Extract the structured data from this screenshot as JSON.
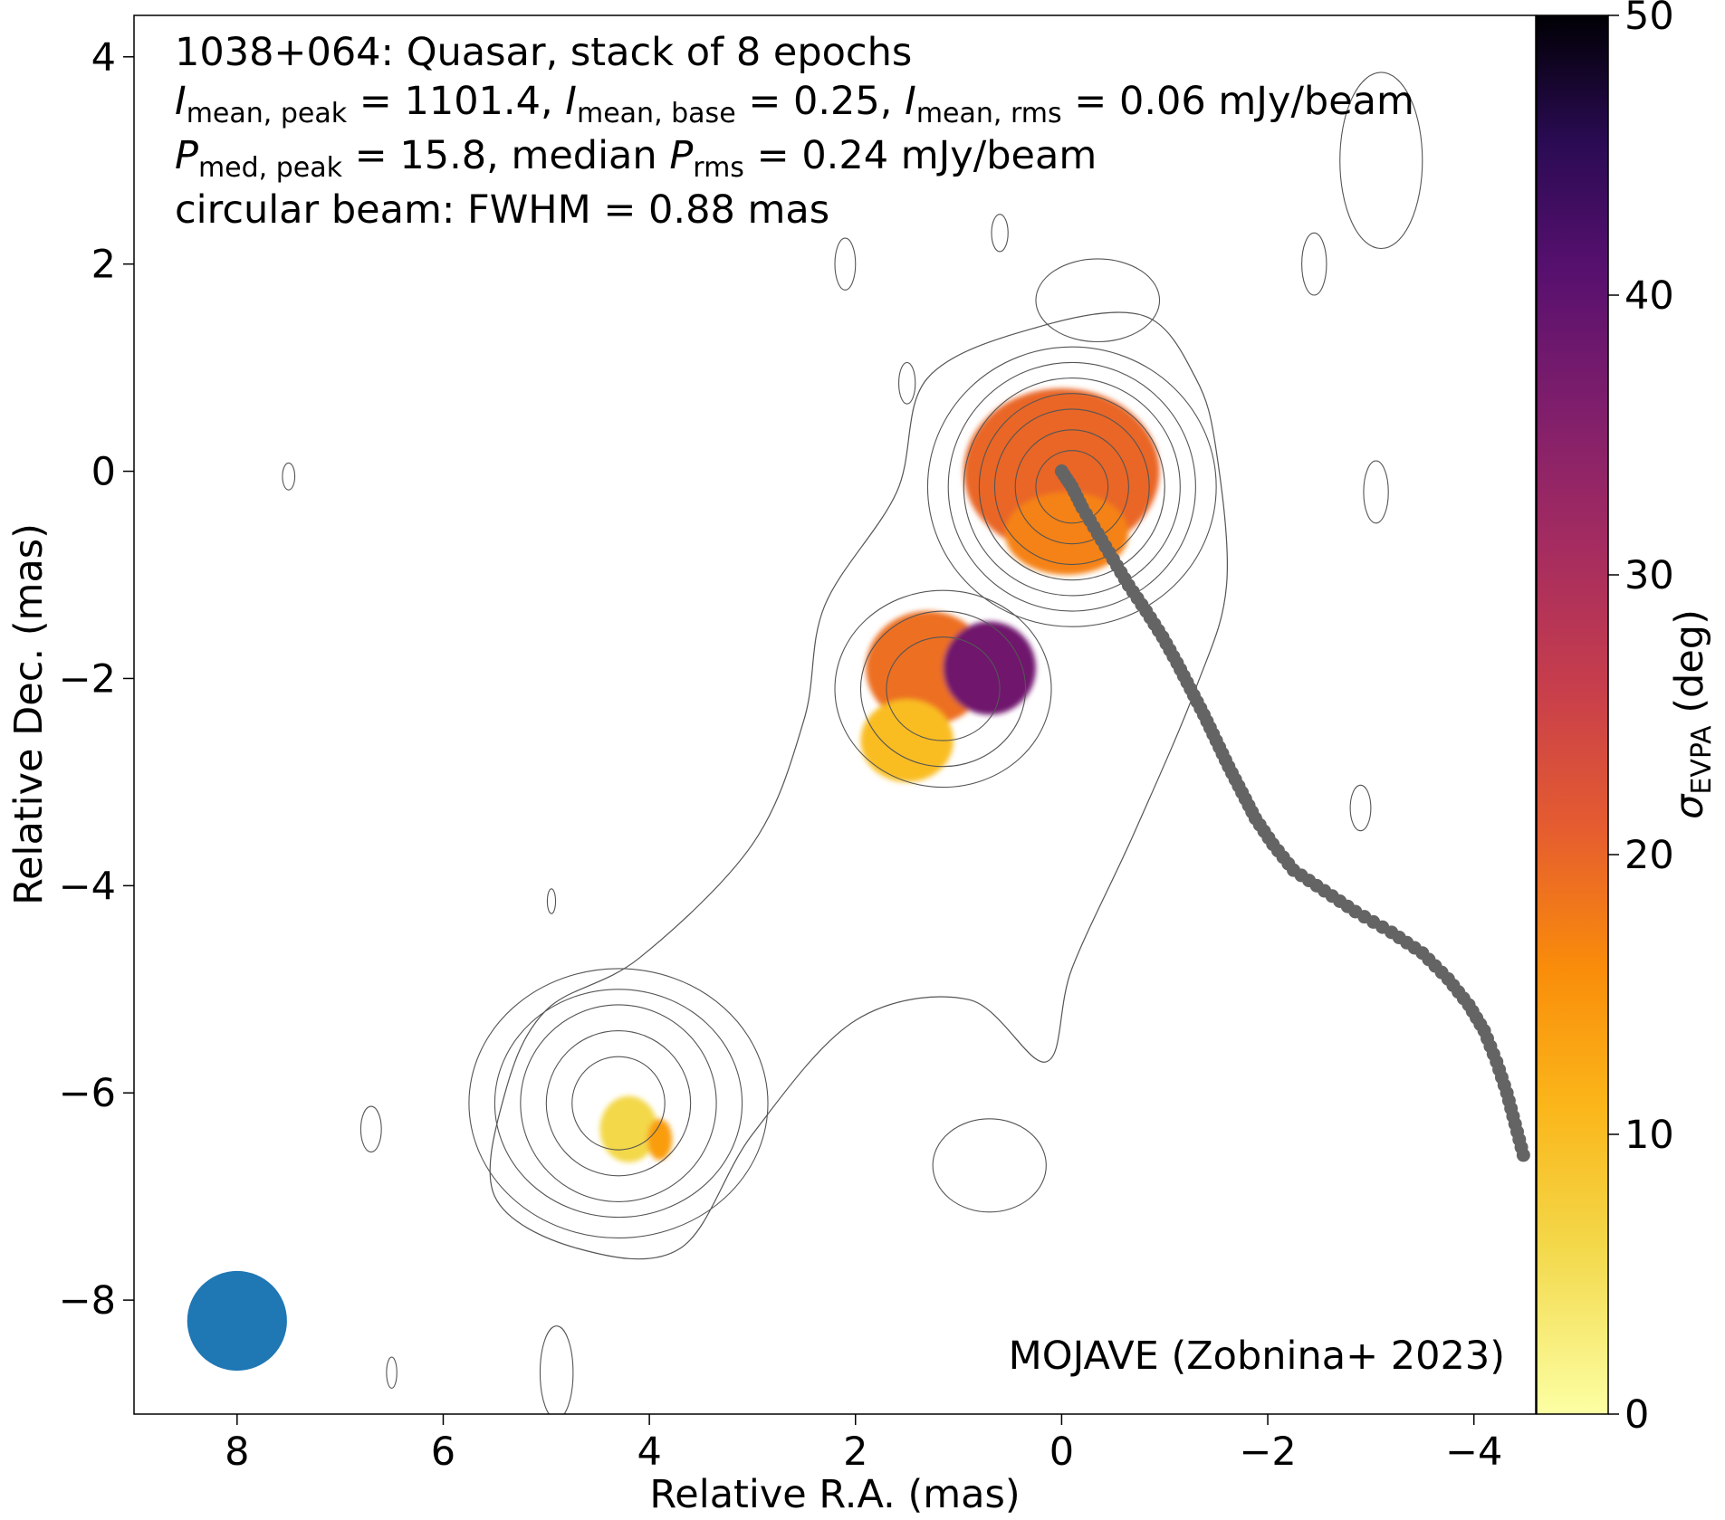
{
  "chart_data": {
    "type": "heatmap",
    "title_lines": {
      "line1": "1038+064: Quasar, stack of 8 epochs",
      "line2": {
        "I_mean_peak": "1101.4",
        "I_mean_base": "0.25",
        "I_mean_rms": "0.06",
        "unit": "mJy/beam",
        "sym_I": "I",
        "sub_peak": "mean, peak",
        "sub_base": "mean, base",
        "sub_rms": "mean, rms"
      },
      "line3": {
        "P_med_peak": "15.8",
        "median_P_rms": "0.24",
        "unit": "mJy/beam",
        "sym_P": "P",
        "sub_peak": "med, peak",
        "sub_rms": "rms",
        "median_word": "median"
      },
      "line4": "circular beam: FWHM = 0.88 mas"
    },
    "credit": "MOJAVE (Zobnina+ 2023)",
    "xlabel": "Relative R.A. (mas)",
    "ylabel": "Relative Dec. (mas)",
    "xlim": [
      9.0,
      -4.6
    ],
    "ylim": [
      -9.1,
      4.4
    ],
    "xticks": [
      8,
      6,
      4,
      2,
      0,
      -2,
      -4
    ],
    "yticks": [
      4,
      2,
      0,
      -2,
      -4,
      -6,
      -8
    ],
    "colorbar": {
      "label_symbol": "σ",
      "label_sub": "EVPA",
      "label_unit": "(deg)",
      "range": [
        0,
        50
      ],
      "ticks": [
        0,
        10,
        20,
        30,
        40,
        50
      ],
      "colormap": "inferno_r"
    },
    "beam": {
      "ra": 8.0,
      "dec": -8.2,
      "fwhm_mas": 0.88,
      "color": "#1f77b4"
    },
    "ridgeline": {
      "color": "#646464",
      "points": [
        [
          0.0,
          0.0
        ],
        [
          -0.1,
          -0.15
        ],
        [
          -0.2,
          -0.35
        ],
        [
          -0.35,
          -0.6
        ],
        [
          -0.5,
          -0.85
        ],
        [
          -0.65,
          -1.1
        ],
        [
          -0.82,
          -1.35
        ],
        [
          -0.98,
          -1.6
        ],
        [
          -1.12,
          -1.85
        ],
        [
          -1.25,
          -2.1
        ],
        [
          -1.38,
          -2.35
        ],
        [
          -1.5,
          -2.6
        ],
        [
          -1.62,
          -2.85
        ],
        [
          -1.75,
          -3.1
        ],
        [
          -1.88,
          -3.35
        ],
        [
          -2.05,
          -3.6
        ],
        [
          -2.25,
          -3.85
        ],
        [
          -2.55,
          -4.05
        ],
        [
          -2.85,
          -4.25
        ],
        [
          -3.2,
          -4.45
        ],
        [
          -3.5,
          -4.65
        ],
        [
          -3.75,
          -4.9
        ],
        [
          -3.95,
          -5.15
        ],
        [
          -4.1,
          -5.4
        ],
        [
          -4.22,
          -5.7
        ],
        [
          -4.32,
          -6.0
        ],
        [
          -4.4,
          -6.3
        ],
        [
          -4.48,
          -6.6
        ]
      ]
    },
    "evpa_blobs": [
      {
        "ra": 0.0,
        "dec": 0.0,
        "rx": 0.95,
        "ry": 0.8,
        "sigma": 20
      },
      {
        "ra": -0.05,
        "dec": -0.6,
        "rx": 0.6,
        "ry": 0.4,
        "sigma": 17
      },
      {
        "ra": 1.3,
        "dec": -1.9,
        "rx": 0.6,
        "ry": 0.55,
        "sigma": 19
      },
      {
        "ra": 0.7,
        "dec": -1.9,
        "rx": 0.45,
        "ry": 0.45,
        "sigma": 38
      },
      {
        "ra": 1.5,
        "dec": -2.6,
        "rx": 0.45,
        "ry": 0.4,
        "sigma": 10
      },
      {
        "ra": 4.2,
        "dec": -6.35,
        "rx": 0.28,
        "ry": 0.32,
        "sigma": 6
      },
      {
        "ra": 3.9,
        "dec": -6.45,
        "rx": 0.12,
        "ry": 0.2,
        "sigma": 14
      }
    ],
    "contour_groups": [
      {
        "ra": -0.1,
        "dec": -0.15,
        "radii": [
          [
            0.35,
            0.35
          ],
          [
            0.55,
            0.55
          ],
          [
            0.75,
            0.75
          ],
          [
            0.9,
            0.9
          ],
          [
            1.05,
            1.05
          ],
          [
            1.2,
            1.2
          ],
          [
            1.4,
            1.35
          ]
        ]
      },
      {
        "ra": 1.15,
        "dec": -2.1,
        "radii": [
          [
            0.55,
            0.5
          ],
          [
            0.8,
            0.75
          ],
          [
            1.05,
            0.95
          ]
        ]
      },
      {
        "ra": 4.3,
        "dec": -6.1,
        "radii": [
          [
            0.45,
            0.45
          ],
          [
            0.7,
            0.7
          ],
          [
            0.95,
            0.95
          ],
          [
            1.2,
            1.1
          ],
          [
            1.45,
            1.3
          ]
        ]
      },
      {
        "ra": -0.35,
        "dec": 1.65,
        "radii": [
          [
            0.6,
            0.4
          ]
        ]
      },
      {
        "ra": -3.1,
        "dec": 3.0,
        "radii": [
          [
            0.4,
            0.85
          ]
        ]
      },
      {
        "ra": -2.45,
        "dec": 2.0,
        "radii": [
          [
            0.12,
            0.3
          ]
        ]
      },
      {
        "ra": 0.7,
        "dec": -6.7,
        "radii": [
          [
            0.55,
            0.45
          ]
        ]
      },
      {
        "ra": -3.05,
        "dec": -0.2,
        "radii": [
          [
            0.12,
            0.3
          ]
        ]
      },
      {
        "ra": -2.9,
        "dec": -3.25,
        "radii": [
          [
            0.1,
            0.22
          ]
        ]
      },
      {
        "ra": 6.7,
        "dec": -6.35,
        "radii": [
          [
            0.1,
            0.22
          ]
        ]
      },
      {
        "ra": 1.5,
        "dec": 0.85,
        "radii": [
          [
            0.08,
            0.2
          ]
        ]
      },
      {
        "ra": 2.1,
        "dec": 2.0,
        "radii": [
          [
            0.1,
            0.25
          ]
        ]
      },
      {
        "ra": 7.5,
        "dec": -0.05,
        "radii": [
          [
            0.06,
            0.13
          ]
        ]
      },
      {
        "ra": 4.95,
        "dec": -4.15,
        "radii": [
          [
            0.04,
            0.12
          ]
        ]
      },
      {
        "ra": 4.9,
        "dec": -8.7,
        "radii": [
          [
            0.16,
            0.45
          ]
        ]
      },
      {
        "ra": 6.5,
        "dec": -8.7,
        "radii": [
          [
            0.05,
            0.15
          ]
        ]
      },
      {
        "ra": 0.6,
        "dec": 2.3,
        "radii": [
          [
            0.08,
            0.18
          ]
        ]
      }
    ],
    "outer_envelope": [
      [
        -1.5,
        0.2
      ],
      [
        -1.3,
        0.9
      ],
      [
        -0.8,
        1.5
      ],
      [
        0.2,
        1.4
      ],
      [
        1.3,
        0.9
      ],
      [
        1.6,
        -0.2
      ],
      [
        2.3,
        -1.3
      ],
      [
        2.5,
        -2.4
      ],
      [
        3.0,
        -3.6
      ],
      [
        4.1,
        -4.7
      ],
      [
        5.0,
        -5.2
      ],
      [
        5.4,
        -6.0
      ],
      [
        5.5,
        -7.0
      ],
      [
        4.7,
        -7.5
      ],
      [
        3.7,
        -7.5
      ],
      [
        3.0,
        -6.4
      ],
      [
        2.0,
        -5.3
      ],
      [
        0.9,
        -5.1
      ],
      [
        0.15,
        -5.7
      ],
      [
        -0.1,
        -4.8
      ],
      [
        -0.7,
        -3.5
      ],
      [
        -1.3,
        -2.1
      ],
      [
        -1.6,
        -1.1
      ]
    ]
  }
}
